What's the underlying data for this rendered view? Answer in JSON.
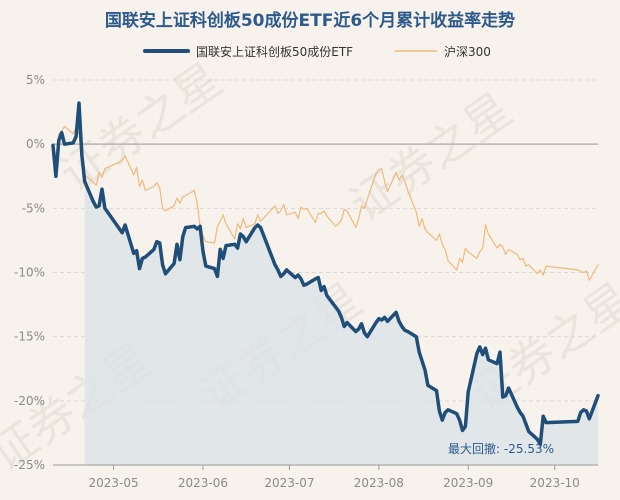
{
  "chart_data": {
    "type": "line",
    "title": "国联安上证科创板50成份ETF近6个月累计收益率走势",
    "x_ticks": [
      "2023-05",
      "2023-06",
      "2023-07",
      "2023-08",
      "2023-09",
      "2023-10"
    ],
    "y_ticks": [
      "5%",
      "0%",
      "-5%",
      "-10%",
      "-15%",
      "-20%",
      "-25%"
    ],
    "y_tick_values": [
      5,
      0,
      -5,
      -10,
      -15,
      -20,
      -25
    ],
    "ylim": [
      -25,
      5
    ],
    "xlim": [
      "2023-04-10",
      "2023-10-16"
    ],
    "legend_position": "top-center",
    "grid": "horizontal",
    "max_drawdown": {
      "label": "最大回撤",
      "value": "-25.53%",
      "start_date": "2023-04-21"
    },
    "series": [
      {
        "name": "国联安上证科创板50成份ETF",
        "color": "#1f4e79",
        "fill": true,
        "points": [
          [
            "2023-04-10",
            -0.1
          ],
          [
            "2023-04-11",
            -2.5
          ],
          [
            "2023-04-12",
            0.3
          ],
          [
            "2023-04-13",
            0.9
          ],
          [
            "2023-04-14",
            0.0
          ],
          [
            "2023-04-17",
            0.1
          ],
          [
            "2023-04-18",
            0.6
          ],
          [
            "2023-04-19",
            3.2
          ],
          [
            "2023-04-20",
            -0.8
          ],
          [
            "2023-04-21",
            -2.9
          ],
          [
            "2023-04-24",
            -4.5
          ],
          [
            "2023-04-25",
            -4.9
          ],
          [
            "2023-04-26",
            -4.8
          ],
          [
            "2023-04-27",
            -3.5
          ],
          [
            "2023-04-28",
            -5.0
          ],
          [
            "2023-05-04",
            -6.9
          ],
          [
            "2023-05-05",
            -6.3
          ],
          [
            "2023-05-08",
            -8.5
          ],
          [
            "2023-05-09",
            -8.3
          ],
          [
            "2023-05-10",
            -9.7
          ],
          [
            "2023-05-11",
            -8.9
          ],
          [
            "2023-05-12",
            -8.8
          ],
          [
            "2023-05-15",
            -8.2
          ],
          [
            "2023-05-16",
            -7.6
          ],
          [
            "2023-05-17",
            -7.7
          ],
          [
            "2023-05-18",
            -9.4
          ],
          [
            "2023-05-19",
            -10.1
          ],
          [
            "2023-05-22",
            -9.3
          ],
          [
            "2023-05-23",
            -7.8
          ],
          [
            "2023-05-24",
            -9.0
          ],
          [
            "2023-05-25",
            -7.2
          ],
          [
            "2023-05-26",
            -6.5
          ],
          [
            "2023-05-29",
            -6.4
          ],
          [
            "2023-05-30",
            -6.6
          ],
          [
            "2023-05-31",
            -6.4
          ],
          [
            "2023-06-01",
            -8.3
          ],
          [
            "2023-06-02",
            -9.5
          ],
          [
            "2023-06-05",
            -9.7
          ],
          [
            "2023-06-06",
            -10.3
          ],
          [
            "2023-06-07",
            -8.2
          ],
          [
            "2023-06-08",
            -8.9
          ],
          [
            "2023-06-09",
            -7.9
          ],
          [
            "2023-06-12",
            -7.8
          ],
          [
            "2023-06-13",
            -8.1
          ],
          [
            "2023-06-14",
            -7.0
          ],
          [
            "2023-06-15",
            -7.2
          ],
          [
            "2023-06-16",
            -7.6
          ],
          [
            "2023-06-19",
            -6.5
          ],
          [
            "2023-06-20",
            -6.3
          ],
          [
            "2023-06-21",
            -6.5
          ],
          [
            "2023-06-26",
            -9.4
          ],
          [
            "2023-06-27",
            -9.8
          ],
          [
            "2023-06-28",
            -10.3
          ],
          [
            "2023-06-29",
            -10.1
          ],
          [
            "2023-06-30",
            -9.8
          ],
          [
            "2023-07-03",
            -10.4
          ],
          [
            "2023-07-04",
            -10.2
          ],
          [
            "2023-07-05",
            -10.5
          ],
          [
            "2023-07-06",
            -11.0
          ],
          [
            "2023-07-07",
            -10.9
          ],
          [
            "2023-07-10",
            -10.5
          ],
          [
            "2023-07-11",
            -10.4
          ],
          [
            "2023-07-12",
            -11.4
          ],
          [
            "2023-07-13",
            -11.1
          ],
          [
            "2023-07-14",
            -11.8
          ],
          [
            "2023-07-17",
            -12.7
          ],
          [
            "2023-07-18",
            -13.0
          ],
          [
            "2023-07-19",
            -13.5
          ],
          [
            "2023-07-20",
            -14.2
          ],
          [
            "2023-07-21",
            -13.9
          ],
          [
            "2023-07-24",
            -14.6
          ],
          [
            "2023-07-25",
            -14.4
          ],
          [
            "2023-07-26",
            -14.0
          ],
          [
            "2023-07-27",
            -14.7
          ],
          [
            "2023-07-28",
            -15.0
          ],
          [
            "2023-07-31",
            -13.9
          ],
          [
            "2023-08-01",
            -13.6
          ],
          [
            "2023-08-02",
            -13.7
          ],
          [
            "2023-08-03",
            -13.5
          ],
          [
            "2023-08-04",
            -13.8
          ],
          [
            "2023-08-07",
            -13.1
          ],
          [
            "2023-08-08",
            -13.8
          ],
          [
            "2023-08-09",
            -14.2
          ],
          [
            "2023-08-10",
            -14.5
          ],
          [
            "2023-08-11",
            -14.6
          ],
          [
            "2023-08-14",
            -15.0
          ],
          [
            "2023-08-15",
            -16.2
          ],
          [
            "2023-08-16",
            -16.9
          ],
          [
            "2023-08-17",
            -17.6
          ],
          [
            "2023-08-18",
            -18.8
          ],
          [
            "2023-08-21",
            -19.2
          ],
          [
            "2023-08-22",
            -20.8
          ],
          [
            "2023-08-23",
            -21.5
          ],
          [
            "2023-08-24",
            -20.9
          ],
          [
            "2023-08-25",
            -20.7
          ],
          [
            "2023-08-28",
            -21.0
          ],
          [
            "2023-08-29",
            -21.5
          ],
          [
            "2023-08-30",
            -22.3
          ],
          [
            "2023-08-31",
            -22.0
          ],
          [
            "2023-09-01",
            -19.3
          ],
          [
            "2023-09-04",
            -16.3
          ],
          [
            "2023-09-05",
            -15.8
          ],
          [
            "2023-09-06",
            -16.4
          ],
          [
            "2023-09-07",
            -15.9
          ],
          [
            "2023-09-08",
            -16.8
          ],
          [
            "2023-09-11",
            -17.1
          ],
          [
            "2023-09-12",
            -16.2
          ],
          [
            "2023-09-13",
            -19.7
          ],
          [
            "2023-09-14",
            -19.6
          ],
          [
            "2023-09-15",
            -19.0
          ],
          [
            "2023-09-18",
            -20.5
          ],
          [
            "2023-09-19",
            -20.9
          ],
          [
            "2023-09-20",
            -21.2
          ],
          [
            "2023-09-21",
            -21.8
          ],
          [
            "2023-09-22",
            -22.4
          ],
          [
            "2023-09-25",
            -23.0
          ],
          [
            "2023-09-26",
            -23.4
          ],
          [
            "2023-09-27",
            -21.2
          ],
          [
            "2023-09-28",
            -21.7
          ],
          [
            "2023-10-09",
            -21.6
          ],
          [
            "2023-10-10",
            -20.9
          ],
          [
            "2023-10-11",
            -20.7
          ],
          [
            "2023-10-12",
            -20.8
          ],
          [
            "2023-10-13",
            -21.4
          ],
          [
            "2023-10-16",
            -19.6
          ]
        ]
      },
      {
        "name": "沪深300",
        "color": "#f0b97c",
        "fill": false,
        "points": [
          [
            "2023-04-10",
            0.0
          ],
          [
            "2023-04-11",
            -1.0
          ],
          [
            "2023-04-12",
            0.8
          ],
          [
            "2023-04-13",
            1.0
          ],
          [
            "2023-04-14",
            1.4
          ],
          [
            "2023-04-17",
            0.8
          ],
          [
            "2023-04-18",
            1.3
          ],
          [
            "2023-04-19",
            0.8
          ],
          [
            "2023-04-20",
            -1.2
          ],
          [
            "2023-04-21",
            -2.4
          ],
          [
            "2023-04-24",
            -3.0
          ],
          [
            "2023-04-25",
            -3.2
          ],
          [
            "2023-04-26",
            -2.2
          ],
          [
            "2023-04-27",
            -2.6
          ],
          [
            "2023-04-28",
            -1.9
          ],
          [
            "2023-05-04",
            -1.3
          ],
          [
            "2023-05-05",
            -0.9
          ],
          [
            "2023-05-08",
            -2.4
          ],
          [
            "2023-05-09",
            -1.8
          ],
          [
            "2023-05-10",
            -3.3
          ],
          [
            "2023-05-11",
            -2.8
          ],
          [
            "2023-05-12",
            -3.6
          ],
          [
            "2023-05-15",
            -3.3
          ],
          [
            "2023-05-16",
            -3.0
          ],
          [
            "2023-05-17",
            -3.4
          ],
          [
            "2023-05-18",
            -5.0
          ],
          [
            "2023-05-19",
            -5.2
          ],
          [
            "2023-05-22",
            -4.8
          ],
          [
            "2023-05-23",
            -4.2
          ],
          [
            "2023-05-24",
            -4.6
          ],
          [
            "2023-05-25",
            -4.1
          ],
          [
            "2023-05-26",
            -4.0
          ],
          [
            "2023-05-29",
            -3.6
          ],
          [
            "2023-05-30",
            -4.6
          ],
          [
            "2023-05-31",
            -6.4
          ],
          [
            "2023-06-01",
            -7.1
          ],
          [
            "2023-06-02",
            -7.6
          ],
          [
            "2023-06-05",
            -7.7
          ],
          [
            "2023-06-06",
            -6.4
          ],
          [
            "2023-06-07",
            -6.0
          ],
          [
            "2023-06-08",
            -5.5
          ],
          [
            "2023-06-09",
            -6.2
          ],
          [
            "2023-06-12",
            -7.4
          ],
          [
            "2023-06-13",
            -6.2
          ],
          [
            "2023-06-14",
            -6.6
          ],
          [
            "2023-06-15",
            -5.8
          ],
          [
            "2023-06-16",
            -6.5
          ],
          [
            "2023-06-19",
            -6.2
          ],
          [
            "2023-06-20",
            -5.5
          ],
          [
            "2023-06-21",
            -6.0
          ],
          [
            "2023-06-26",
            -4.8
          ],
          [
            "2023-06-27",
            -5.4
          ],
          [
            "2023-06-28",
            -5.2
          ],
          [
            "2023-06-29",
            -4.7
          ],
          [
            "2023-06-30",
            -5.5
          ],
          [
            "2023-07-03",
            -5.3
          ],
          [
            "2023-07-04",
            -5.8
          ],
          [
            "2023-07-05",
            -4.9
          ],
          [
            "2023-07-06",
            -5.1
          ],
          [
            "2023-07-07",
            -5.0
          ],
          [
            "2023-07-10",
            -6.1
          ],
          [
            "2023-07-11",
            -5.4
          ],
          [
            "2023-07-12",
            -5.4
          ],
          [
            "2023-07-13",
            -5.2
          ],
          [
            "2023-07-14",
            -5.6
          ],
          [
            "2023-07-17",
            -6.4
          ],
          [
            "2023-07-18",
            -6.2
          ],
          [
            "2023-07-19",
            -5.9
          ],
          [
            "2023-07-20",
            -5.1
          ],
          [
            "2023-07-21",
            -5.2
          ],
          [
            "2023-07-24",
            -6.5
          ],
          [
            "2023-07-25",
            -5.8
          ],
          [
            "2023-07-26",
            -4.8
          ],
          [
            "2023-07-27",
            -5.0
          ],
          [
            "2023-07-28",
            -4.3
          ],
          [
            "2023-07-31",
            -2.3
          ],
          [
            "2023-08-01",
            -2.0
          ],
          [
            "2023-08-02",
            -1.9
          ],
          [
            "2023-08-03",
            -2.9
          ],
          [
            "2023-08-04",
            -3.7
          ],
          [
            "2023-08-07",
            -2.2
          ],
          [
            "2023-08-08",
            -2.8
          ],
          [
            "2023-08-09",
            -2.4
          ],
          [
            "2023-08-10",
            -2.9
          ],
          [
            "2023-08-11",
            -3.6
          ],
          [
            "2023-08-14",
            -5.3
          ],
          [
            "2023-08-15",
            -6.4
          ],
          [
            "2023-08-16",
            -5.8
          ],
          [
            "2023-08-17",
            -6.6
          ],
          [
            "2023-08-18",
            -6.9
          ],
          [
            "2023-08-21",
            -7.5
          ],
          [
            "2023-08-22",
            -7.0
          ],
          [
            "2023-08-23",
            -7.8
          ],
          [
            "2023-08-24",
            -8.2
          ],
          [
            "2023-08-25",
            -9.1
          ],
          [
            "2023-08-28",
            -9.8
          ],
          [
            "2023-08-29",
            -8.9
          ],
          [
            "2023-08-30",
            -9.2
          ],
          [
            "2023-08-31",
            -8.1
          ],
          [
            "2023-09-01",
            -8.4
          ],
          [
            "2023-09-04",
            -8.9
          ],
          [
            "2023-09-05",
            -8.4
          ],
          [
            "2023-09-06",
            -8.1
          ],
          [
            "2023-09-07",
            -6.3
          ],
          [
            "2023-09-08",
            -7.0
          ],
          [
            "2023-09-11",
            -8.1
          ],
          [
            "2023-09-12",
            -7.8
          ],
          [
            "2023-09-13",
            -8.0
          ],
          [
            "2023-09-14",
            -8.6
          ],
          [
            "2023-09-15",
            -8.2
          ],
          [
            "2023-09-18",
            -8.6
          ],
          [
            "2023-09-19",
            -9.0
          ],
          [
            "2023-09-20",
            -8.9
          ],
          [
            "2023-09-21",
            -9.5
          ],
          [
            "2023-09-22",
            -9.4
          ],
          [
            "2023-09-25",
            -10.1
          ],
          [
            "2023-09-26",
            -9.8
          ],
          [
            "2023-09-27",
            -10.2
          ],
          [
            "2023-09-28",
            -9.5
          ],
          [
            "2023-10-09",
            -9.8
          ],
          [
            "2023-10-10",
            -9.9
          ],
          [
            "2023-10-11",
            -10.0
          ],
          [
            "2023-10-12",
            -9.9
          ],
          [
            "2023-10-13",
            -10.6
          ],
          [
            "2023-10-16",
            -9.4
          ]
        ]
      }
    ]
  },
  "watermark": {
    "text": "证券之星"
  }
}
